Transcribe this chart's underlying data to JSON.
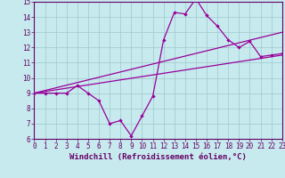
{
  "xlabel": "Windchill (Refroidissement éolien,°C)",
  "xlim": [
    0,
    23
  ],
  "ylim": [
    6,
    15
  ],
  "xticks": [
    0,
    1,
    2,
    3,
    4,
    5,
    6,
    7,
    8,
    9,
    10,
    11,
    12,
    13,
    14,
    15,
    16,
    17,
    18,
    19,
    20,
    21,
    22,
    23
  ],
  "yticks": [
    6,
    7,
    8,
    9,
    10,
    11,
    12,
    13,
    14,
    15
  ],
  "bg_color": "#c6eaee",
  "line_color": "#990099",
  "grid_color": "#a0c8cc",
  "line1_x": [
    0,
    1,
    2,
    3,
    4,
    5,
    6,
    7,
    8,
    9,
    10,
    11,
    12,
    13,
    14,
    15,
    16,
    17,
    18,
    19,
    20,
    21,
    22,
    23
  ],
  "line1_y": [
    9.0,
    9.0,
    9.0,
    9.0,
    9.5,
    9.0,
    8.5,
    7.0,
    7.2,
    6.2,
    7.5,
    8.8,
    12.5,
    14.3,
    14.2,
    15.2,
    14.1,
    13.4,
    12.5,
    12.0,
    12.4,
    11.4,
    11.5,
    11.6
  ],
  "line2_x": [
    0,
    23
  ],
  "line2_y": [
    9.0,
    13.0
  ],
  "line3_x": [
    0,
    23
  ],
  "line3_y": [
    9.0,
    11.5
  ],
  "font_color": "#660066",
  "tick_fontsize": 5.5,
  "xlabel_fontsize": 6.5
}
